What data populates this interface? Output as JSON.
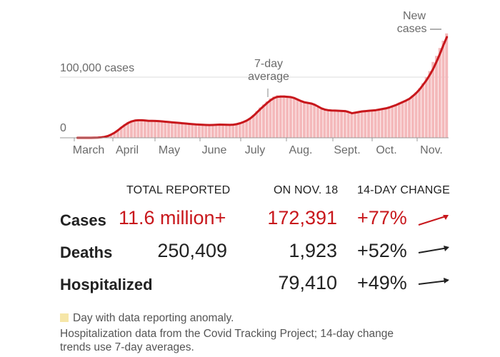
{
  "chart_data": {
    "type": "bar",
    "ylabels": [
      "100,000 cases",
      "0"
    ],
    "ylim": [
      0,
      180000
    ],
    "xticks": [
      "March",
      "April",
      "May",
      "June",
      "July",
      "Aug.",
      "Sept.",
      "Oct.",
      "Nov."
    ],
    "annotations": {
      "seven_day": [
        "7-day",
        "average"
      ],
      "new_cases": [
        "New",
        "cases —"
      ]
    },
    "series": [
      {
        "values": [
          0,
          0,
          0,
          0,
          0,
          200,
          500,
          1000,
          2000,
          3500,
          6000,
          9000,
          13000,
          18000,
          22000,
          26000,
          28000,
          29000,
          29500,
          29000,
          28500,
          28000,
          28500,
          28000,
          27500,
          27000,
          26500,
          26000,
          25500,
          25000,
          24500,
          24000,
          23500,
          23000,
          22500,
          22000,
          21800,
          21500,
          21000,
          21000,
          21500,
          22000,
          22000,
          21500,
          21000,
          21000,
          21500,
          22500,
          24000,
          26000,
          29000,
          33000,
          38000,
          44000,
          50000,
          55000,
          60000,
          65000,
          68000,
          70000,
          70000,
          70000,
          69000,
          68000,
          66000,
          63000,
          60000,
          58000,
          57000,
          56000,
          54000,
          50000,
          47000,
          45000,
          44500,
          44000,
          44000,
          44000,
          43500,
          43000,
          41000,
          39000,
          42000,
          43000,
          44000,
          44500,
          45000,
          45500,
          46000,
          47000,
          48000,
          49000,
          51000,
          53000,
          55000,
          58000,
          60000,
          62000,
          65000,
          70000,
          75000,
          82000,
          90000,
          100000,
          110000,
          125000,
          135000,
          148000,
          160000,
          172000
        ]
      },
      {
        "name": "7-day average",
        "values": [
          0,
          0,
          0,
          0,
          0,
          100,
          300,
          700,
          1500,
          3000,
          5500,
          8500,
          12500,
          17000,
          21000,
          24500,
          27000,
          28500,
          29000,
          29000,
          28500,
          28000,
          28000,
          27800,
          27500,
          27000,
          26500,
          26000,
          25500,
          25000,
          24500,
          24000,
          23500,
          23000,
          22500,
          22000,
          21800,
          21500,
          21200,
          21000,
          21200,
          21500,
          21700,
          21600,
          21400,
          21300,
          21600,
          22500,
          24000,
          26000,
          28500,
          32000,
          36500,
          42000,
          47500,
          52500,
          57500,
          62000,
          65500,
          67500,
          68000,
          68000,
          67500,
          67000,
          65500,
          63000,
          60500,
          58500,
          57500,
          56500,
          54500,
          51500,
          48500,
          46500,
          45500,
          45000,
          44800,
          44600,
          44300,
          44000,
          42500,
          40500,
          41500,
          42500,
          43500,
          44000,
          44500,
          45000,
          45500,
          46500,
          47500,
          48500,
          50000,
          52000,
          54000,
          56500,
          59000,
          61500,
          64500,
          69000,
          74000,
          80000,
          87500,
          95000,
          104000,
          114000,
          126000,
          139000,
          153000,
          166000
        ]
      }
    ]
  },
  "table": {
    "headers": {
      "total": "TOTAL REPORTED",
      "on_date": "ON NOV. 18",
      "change": "14-DAY CHANGE"
    },
    "rows": [
      {
        "label": "Cases",
        "total": "11.6 million+",
        "on_date": "172,391",
        "change": "+77%"
      },
      {
        "label": "Deaths",
        "total": "250,409",
        "on_date": "1,923",
        "change": "+52%"
      },
      {
        "label": "Hospitalized",
        "total": "",
        "on_date": "79,410",
        "change": "+49%"
      }
    ]
  },
  "footnote": {
    "anomaly": "Day with data reporting anomaly.",
    "source": [
      "Hospitalization data from the Covid Tracking Project; 14-day change",
      "trends use 7-day averages."
    ]
  },
  "colors": {
    "accent": "#c8171c",
    "bar": "#f4b9bb",
    "anomaly": "#f6e6a8"
  }
}
